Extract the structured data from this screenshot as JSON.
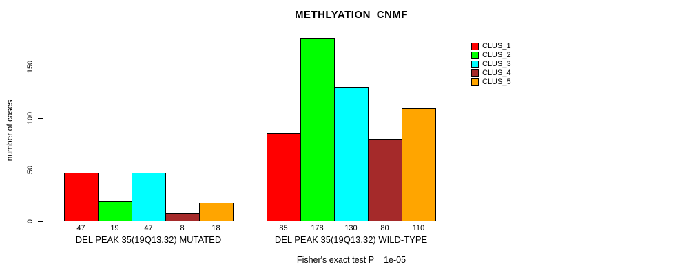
{
  "chart_data": {
    "type": "bar",
    "title": "METHLYATION_CNMF",
    "ylabel": "number of cases",
    "xlabel": "",
    "yticks": [
      0,
      50,
      100,
      150
    ],
    "ylim": [
      0,
      178
    ],
    "grid": false,
    "legend_position": "right",
    "categories": [
      "DEL PEAK 35(19Q13.32) MUTATED",
      "DEL PEAK 35(19Q13.32) WILD-TYPE"
    ],
    "series": [
      {
        "name": "CLUS_1",
        "color": "#ff0000",
        "values": [
          47,
          85
        ]
      },
      {
        "name": "CLUS_2",
        "color": "#00ff00",
        "values": [
          19,
          178
        ]
      },
      {
        "name": "CLUS_3",
        "color": "#00ffff",
        "values": [
          47,
          130
        ]
      },
      {
        "name": "CLUS_4",
        "color": "#a52a2a",
        "values": [
          8,
          80
        ]
      },
      {
        "name": "CLUS_5",
        "color": "#ffa500",
        "values": [
          18,
          110
        ]
      }
    ],
    "bar_value_labels_shown": true,
    "annotation": "Fisher's exact test P = 1e-05"
  }
}
